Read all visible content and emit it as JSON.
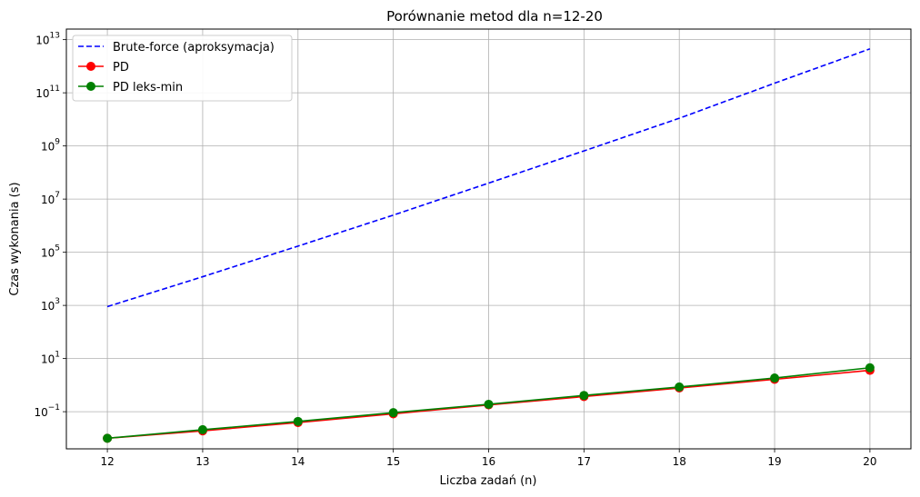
{
  "chart_data": {
    "type": "line",
    "title": "Porównanie metod dla n=12-20",
    "xlabel": "Liczba zadań (n)",
    "ylabel": "Czas wykonania (s)",
    "x": [
      12,
      13,
      14,
      15,
      16,
      17,
      18,
      19,
      20
    ],
    "xlim": [
      11.57,
      20.43
    ],
    "yscale": "log",
    "ylim": [
      0.004,
      25000000000000
    ],
    "y_ticks": [
      {
        "base": "10",
        "exp": "−1",
        "value": 0.1
      },
      {
        "base": "10",
        "exp": "1",
        "value": 10
      },
      {
        "base": "10",
        "exp": "3",
        "value": 1000
      },
      {
        "base": "10",
        "exp": "5",
        "value": 100000
      },
      {
        "base": "10",
        "exp": "7",
        "value": 10000000
      },
      {
        "base": "10",
        "exp": "9",
        "value": 1000000000
      },
      {
        "base": "10",
        "exp": "11",
        "value": 100000000000
      },
      {
        "base": "10",
        "exp": "13",
        "value": 10000000000000
      }
    ],
    "x_ticks": [
      "12",
      "13",
      "14",
      "15",
      "16",
      "17",
      "18",
      "19",
      "20"
    ],
    "grid": true,
    "legend_position": "top-left",
    "series": [
      {
        "name": "Brute-force (aproksymacja)",
        "color": "#0000ff",
        "style": "dashed",
        "marker": "none",
        "values": [
          900,
          12000,
          170000,
          2500000,
          40000000,
          650000000,
          11000000000,
          230000000000,
          4500000000000
        ]
      },
      {
        "name": "PD",
        "color": "#ff0000",
        "style": "solid",
        "marker": "circle",
        "values": [
          0.01,
          0.019,
          0.039,
          0.083,
          0.18,
          0.37,
          0.78,
          1.65,
          3.6
        ]
      },
      {
        "name": "PD leks-min",
        "color": "#008000",
        "style": "solid",
        "marker": "circle",
        "values": [
          0.01,
          0.021,
          0.043,
          0.092,
          0.19,
          0.41,
          0.85,
          1.85,
          4.5
        ]
      }
    ]
  }
}
